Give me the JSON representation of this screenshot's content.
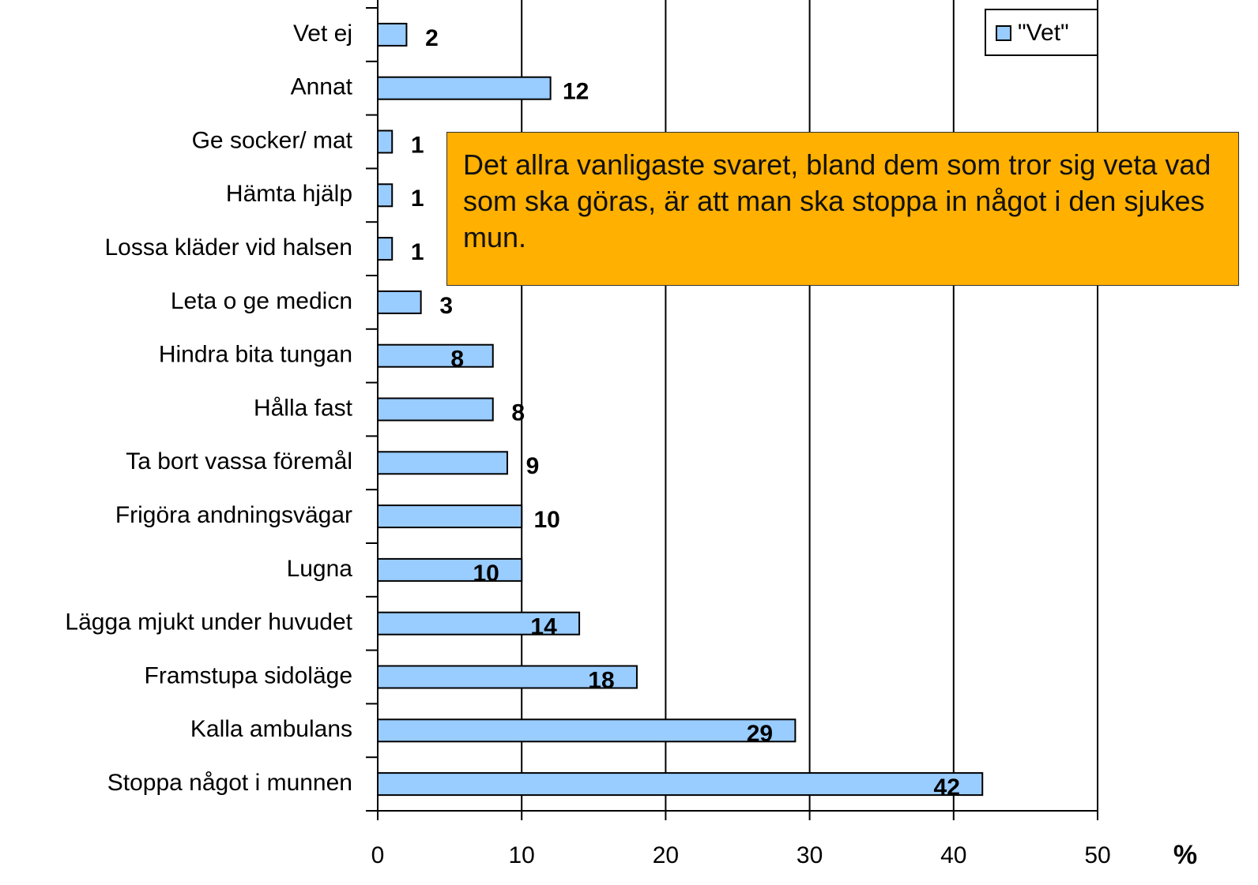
{
  "chart_data": {
    "type": "bar",
    "orientation": "horizontal",
    "categories": [
      "Vet ej",
      "Annat",
      "Ge socker/ mat",
      "Hämta hjälp",
      "Lossa kläder vid halsen",
      "Leta o ge medicn",
      "Hindra bita tungan",
      "Hålla fast",
      "Ta bort vassa föremål",
      "Frigöra andningsvägar",
      "Lugna",
      "Lägga mjukt under huvudet",
      "Framstupa sidoläge",
      "Kalla ambulans",
      "Stoppa något i munnen"
    ],
    "series": [
      {
        "name": "\"Vet\"",
        "color": "#99ccff",
        "values": [
          2,
          12,
          1,
          1,
          1,
          3,
          8,
          8,
          9,
          10,
          10,
          14,
          18,
          29,
          42
        ]
      }
    ],
    "xlim": [
      0,
      50
    ],
    "xticks": [
      0,
      10,
      20,
      30,
      40,
      50
    ],
    "xlabel": "%",
    "grid": true,
    "legend": "top-right",
    "annotation": "Det allra vanligaste svaret, bland dem som tror sig veta vad som ska göras, är att man ska stoppa in något i den sjukes mun."
  }
}
